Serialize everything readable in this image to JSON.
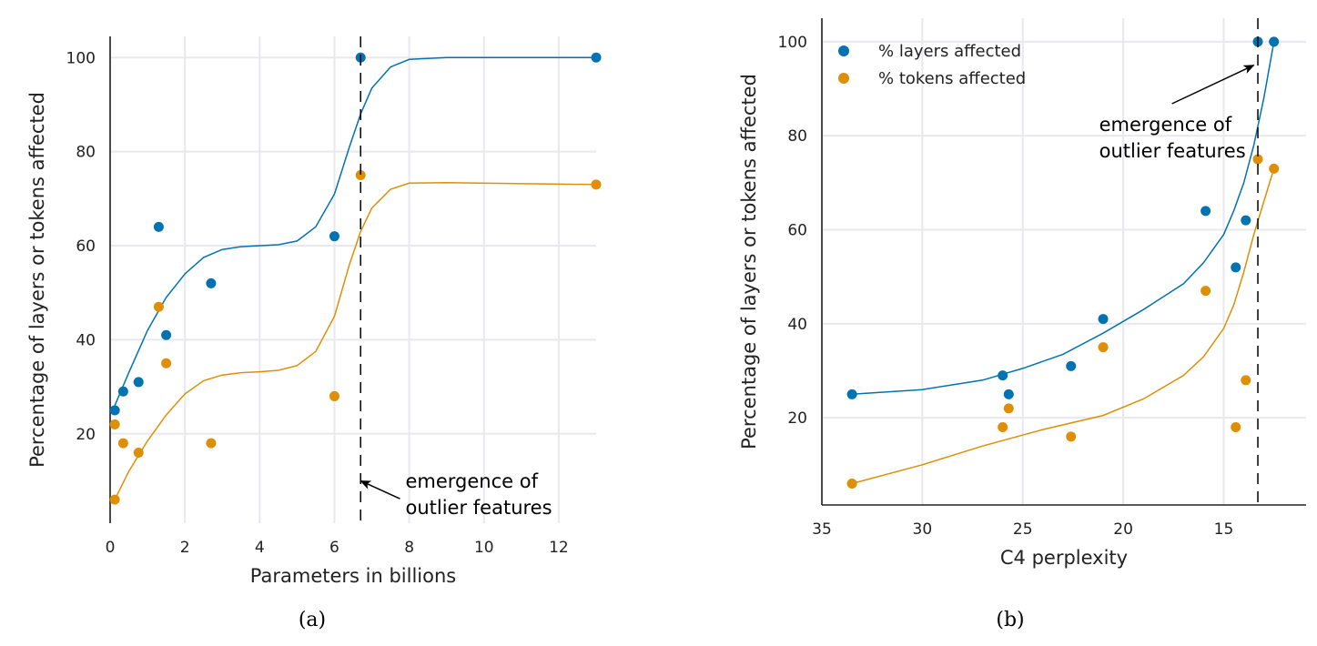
{
  "chart_data": [
    {
      "type": "scatter",
      "caption": "(a)",
      "xlabel": "Parameters in billions",
      "ylabel": "Percentage of layers or tokens affected",
      "xlim": [
        0,
        13
      ],
      "ylim": [
        1,
        104.5
      ],
      "x_reversed": false,
      "xticks": [
        0,
        2,
        4,
        6,
        8,
        10,
        12
      ],
      "yticks": [
        20,
        40,
        60,
        80,
        100
      ],
      "grid": true,
      "legend": null,
      "series": [
        {
          "color": "#0173b2",
          "points": [
            [
              0.125,
              25
            ],
            [
              0.35,
              29
            ],
            [
              0.76,
              31
            ],
            [
              1.3,
              64
            ],
            [
              1.5,
              41
            ],
            [
              2.7,
              52
            ],
            [
              6.0,
              62
            ],
            [
              6.7,
              100
            ],
            [
              13,
              100
            ]
          ],
          "fit": [
            [
              0.125,
              26
            ],
            [
              0.5,
              33
            ],
            [
              1,
              42
            ],
            [
              1.5,
              49
            ],
            [
              2,
              54
            ],
            [
              2.5,
              57.5
            ],
            [
              3,
              59.2
            ],
            [
              3.5,
              59.8
            ],
            [
              4,
              60
            ],
            [
              4.5,
              60.2
            ],
            [
              5,
              61
            ],
            [
              5.5,
              64
            ],
            [
              6,
              71
            ],
            [
              6.4,
              81
            ],
            [
              6.7,
              88
            ],
            [
              7,
              93.5
            ],
            [
              7.5,
              98
            ],
            [
              8,
              99.6
            ],
            [
              9,
              100
            ],
            [
              13,
              100
            ]
          ]
        },
        {
          "color": "#de8f05",
          "points": [
            [
              0.125,
              22
            ],
            [
              0.125,
              6
            ],
            [
              0.35,
              18
            ],
            [
              0.76,
              16
            ],
            [
              1.3,
              47
            ],
            [
              1.5,
              35
            ],
            [
              2.7,
              18
            ],
            [
              6.0,
              28
            ],
            [
              6.7,
              75
            ],
            [
              13,
              73
            ]
          ],
          "fit": [
            [
              0.125,
              6
            ],
            [
              0.5,
              12
            ],
            [
              1,
              18.5
            ],
            [
              1.5,
              24
            ],
            [
              2,
              28.5
            ],
            [
              2.5,
              31.3
            ],
            [
              3,
              32.5
            ],
            [
              3.5,
              33
            ],
            [
              4,
              33.2
            ],
            [
              4.5,
              33.5
            ],
            [
              5,
              34.5
            ],
            [
              5.5,
              37.5
            ],
            [
              6,
              45
            ],
            [
              6.4,
              56
            ],
            [
              6.7,
              63
            ],
            [
              7,
              68
            ],
            [
              7.5,
              72
            ],
            [
              8,
              73.3
            ],
            [
              9,
              73.4
            ],
            [
              13,
              73
            ]
          ]
        }
      ],
      "vline": 6.7,
      "annotation": {
        "lines": [
          "emergence of",
          "outlier features"
        ],
        "text_at": [
          7.9,
          8.5
        ],
        "arrow_to": [
          6.7,
          10
        ]
      }
    },
    {
      "type": "scatter",
      "caption": "(b)",
      "xlabel": "C4 perplexity",
      "ylabel": "Percentage of layers or tokens affected",
      "xlim": [
        35,
        10.9
      ],
      "ylim": [
        1.45,
        105
      ],
      "x_reversed": true,
      "xticks": [
        35,
        30,
        25,
        20,
        15
      ],
      "yticks": [
        20,
        40,
        60,
        80,
        100
      ],
      "grid": true,
      "legend": "top-left",
      "series": [
        {
          "name": "% layers affected",
          "color": "#0173b2",
          "points": [
            [
              33.5,
              25
            ],
            [
              26,
              29
            ],
            [
              25.7,
              25
            ],
            [
              22.6,
              31
            ],
            [
              21,
              41
            ],
            [
              15.9,
              64
            ],
            [
              14.4,
              52
            ],
            [
              13.9,
              62
            ],
            [
              13.3,
              100
            ],
            [
              12.5,
              100
            ]
          ],
          "fit": [
            [
              33.5,
              25
            ],
            [
              30,
              26
            ],
            [
              27,
              28
            ],
            [
              25,
              30.5
            ],
            [
              23,
              33.5
            ],
            [
              21,
              38
            ],
            [
              19,
              43
            ],
            [
              17,
              48.5
            ],
            [
              16,
              53
            ],
            [
              15,
              59
            ],
            [
              14.5,
              64
            ],
            [
              14,
              70
            ],
            [
              13.5,
              78
            ],
            [
              13,
              88
            ],
            [
              12.5,
              100
            ]
          ]
        },
        {
          "name": "% tokens affected",
          "color": "#de8f05",
          "points": [
            [
              33.5,
              6
            ],
            [
              26,
              18
            ],
            [
              25.7,
              22
            ],
            [
              22.6,
              16
            ],
            [
              21,
              35
            ],
            [
              15.9,
              47
            ],
            [
              14.4,
              18
            ],
            [
              13.9,
              28
            ],
            [
              13.3,
              75
            ],
            [
              12.5,
              73
            ]
          ],
          "fit": [
            [
              33.5,
              6
            ],
            [
              30,
              10
            ],
            [
              27,
              14
            ],
            [
              24,
              17.5
            ],
            [
              21,
              20.5
            ],
            [
              19,
              24
            ],
            [
              17,
              29
            ],
            [
              16,
              33
            ],
            [
              15,
              39
            ],
            [
              14.5,
              44
            ],
            [
              14,
              51
            ],
            [
              13.5,
              59
            ],
            [
              13,
              66
            ],
            [
              12.5,
              73
            ]
          ]
        }
      ],
      "vline": 13.3,
      "annotation": {
        "lines": [
          "emergence of",
          "outlier features"
        ],
        "text_at": [
          21.2,
          81
        ],
        "arrow_to": [
          13.5,
          95
        ]
      }
    }
  ]
}
